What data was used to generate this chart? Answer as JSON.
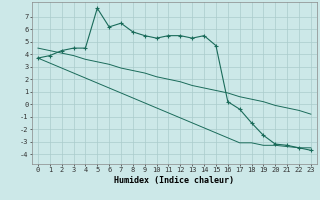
{
  "xlabel": "Humidex (Indice chaleur)",
  "background_color": "#cce8e8",
  "grid_color": "#aacccc",
  "line_color": "#1a6b5a",
  "x_data": [
    0,
    1,
    2,
    3,
    4,
    5,
    6,
    7,
    8,
    9,
    10,
    11,
    12,
    13,
    14,
    15,
    16,
    17,
    18,
    19,
    20,
    21,
    22,
    23
  ],
  "y_main": [
    3.7,
    3.9,
    4.3,
    4.5,
    4.5,
    7.7,
    6.2,
    6.5,
    5.8,
    5.5,
    5.3,
    5.5,
    5.5,
    5.3,
    5.5,
    4.7,
    0.2,
    -0.4,
    -1.5,
    -2.5,
    -3.2,
    -3.3,
    -3.5,
    -3.7
  ],
  "y_line1": [
    4.5,
    4.3,
    4.1,
    3.9,
    3.6,
    3.4,
    3.2,
    2.9,
    2.7,
    2.5,
    2.2,
    2.0,
    1.8,
    1.5,
    1.3,
    1.1,
    0.9,
    0.6,
    0.4,
    0.2,
    -0.1,
    -0.3,
    -0.5,
    -0.8
  ],
  "y_line2": [
    3.7,
    3.3,
    2.9,
    2.5,
    2.1,
    1.7,
    1.3,
    0.9,
    0.5,
    0.1,
    -0.3,
    -0.7,
    -1.1,
    -1.5,
    -1.9,
    -2.3,
    -2.7,
    -3.1,
    -3.1,
    -3.3,
    -3.3,
    -3.4,
    -3.5,
    -3.5
  ],
  "ylim": [
    -4.8,
    8.2
  ],
  "yticks": [
    7,
    6,
    5,
    4,
    3,
    2,
    1,
    0,
    -1,
    -2,
    -3,
    -4
  ],
  "xlim": [
    -0.5,
    23.5
  ],
  "xlabel_fontsize": 6,
  "tick_fontsize": 5
}
